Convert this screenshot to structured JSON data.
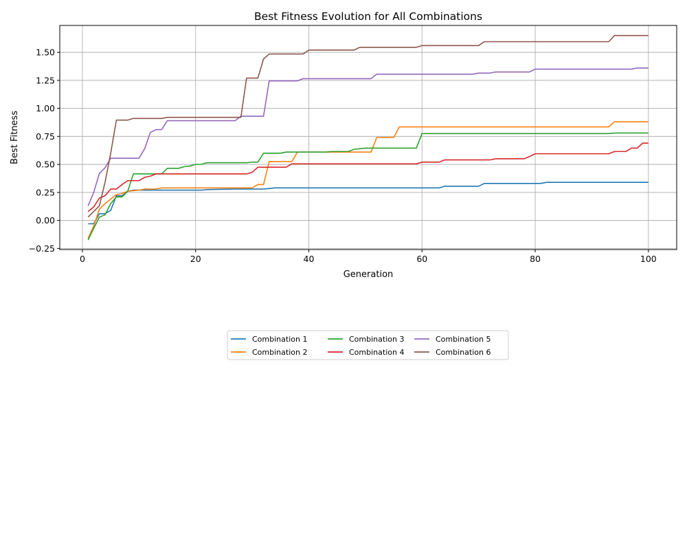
{
  "chart_data": {
    "type": "line",
    "title": "Best Fitness Evolution for All Combinations",
    "xlabel": "Generation",
    "ylabel": "Best Fitness",
    "xlim": [
      -4,
      105
    ],
    "ylim": [
      -0.26,
      1.74
    ],
    "xticks": [
      0,
      20,
      40,
      60,
      80,
      100
    ],
    "yticks": [
      -0.25,
      0.0,
      0.25,
      0.5,
      0.75,
      1.0,
      1.25,
      1.5
    ],
    "ytick_labels": [
      "−0.25",
      "0.00",
      "0.25",
      "0.50",
      "0.75",
      "1.00",
      "1.25",
      "1.50"
    ],
    "xtick_labels": [
      "0",
      "20",
      "40",
      "60",
      "80",
      "100"
    ],
    "grid": true,
    "legend_position": "bottom-center",
    "series": [
      {
        "name": "Combination 1",
        "color": "#1f77b4",
        "points": [
          [
            1,
            -0.03
          ],
          [
            2,
            -0.03
          ],
          [
            3,
            0.06
          ],
          [
            4,
            0.06
          ],
          [
            5,
            0.09
          ],
          [
            6,
            0.22
          ],
          [
            7,
            0.22
          ],
          [
            8,
            0.26
          ],
          [
            9,
            0.27
          ],
          [
            21,
            0.27
          ],
          [
            22,
            0.275
          ],
          [
            27,
            0.28
          ],
          [
            32,
            0.28
          ],
          [
            33,
            0.285
          ],
          [
            34,
            0.29
          ],
          [
            63,
            0.29
          ],
          [
            64,
            0.305
          ],
          [
            70,
            0.305
          ],
          [
            71,
            0.33
          ],
          [
            81,
            0.33
          ],
          [
            82,
            0.34
          ],
          [
            100,
            0.34
          ]
        ]
      },
      {
        "name": "Combination 2",
        "color": "#ff7f0e",
        "points": [
          [
            1,
            -0.16
          ],
          [
            2,
            -0.05
          ],
          [
            3,
            0.1
          ],
          [
            4,
            0.15
          ],
          [
            5,
            0.19
          ],
          [
            6,
            0.23
          ],
          [
            7,
            0.24
          ],
          [
            8,
            0.26
          ],
          [
            10,
            0.27
          ],
          [
            11,
            0.28
          ],
          [
            13,
            0.28
          ],
          [
            14,
            0.29
          ],
          [
            30,
            0.29
          ],
          [
            31,
            0.32
          ],
          [
            32,
            0.32
          ],
          [
            33,
            0.525
          ],
          [
            37,
            0.525
          ],
          [
            38,
            0.61
          ],
          [
            51,
            0.61
          ],
          [
            52,
            0.74
          ],
          [
            55,
            0.74
          ],
          [
            56,
            0.835
          ],
          [
            93,
            0.835
          ],
          [
            94,
            0.88
          ],
          [
            100,
            0.88
          ]
        ]
      },
      {
        "name": "Combination 3",
        "color": "#2ca02c",
        "points": [
          [
            1,
            -0.175
          ],
          [
            2,
            -0.07
          ],
          [
            3,
            0.03
          ],
          [
            4,
            0.05
          ],
          [
            5,
            0.15
          ],
          [
            6,
            0.21
          ],
          [
            7,
            0.21
          ],
          [
            8,
            0.26
          ],
          [
            9,
            0.415
          ],
          [
            14,
            0.415
          ],
          [
            15,
            0.465
          ],
          [
            17,
            0.465
          ],
          [
            18,
            0.48
          ],
          [
            19,
            0.485
          ],
          [
            20,
            0.5
          ],
          [
            21,
            0.5
          ],
          [
            22,
            0.515
          ],
          [
            29,
            0.515
          ],
          [
            30,
            0.52
          ],
          [
            31,
            0.52
          ],
          [
            32,
            0.6
          ],
          [
            35,
            0.6
          ],
          [
            36,
            0.61
          ],
          [
            43,
            0.61
          ],
          [
            44,
            0.615
          ],
          [
            47,
            0.615
          ],
          [
            48,
            0.635
          ],
          [
            49,
            0.64
          ],
          [
            50,
            0.645
          ],
          [
            59,
            0.645
          ],
          [
            60,
            0.775
          ],
          [
            93,
            0.775
          ],
          [
            94,
            0.78
          ],
          [
            100,
            0.78
          ]
        ]
      },
      {
        "name": "Combination 4",
        "color": "#d62728",
        "points": [
          [
            1,
            0.08
          ],
          [
            2,
            0.12
          ],
          [
            3,
            0.2
          ],
          [
            4,
            0.22
          ],
          [
            5,
            0.28
          ],
          [
            6,
            0.28
          ],
          [
            7,
            0.32
          ],
          [
            8,
            0.355
          ],
          [
            10,
            0.355
          ],
          [
            11,
            0.385
          ],
          [
            12,
            0.395
          ],
          [
            13,
            0.415
          ],
          [
            28,
            0.415
          ],
          [
            29,
            0.415
          ],
          [
            30,
            0.43
          ],
          [
            31,
            0.475
          ],
          [
            36,
            0.475
          ],
          [
            37,
            0.505
          ],
          [
            59,
            0.505
          ],
          [
            60,
            0.52
          ],
          [
            63,
            0.52
          ],
          [
            64,
            0.54
          ],
          [
            72,
            0.54
          ],
          [
            73,
            0.55
          ],
          [
            78,
            0.55
          ],
          [
            79,
            0.57
          ],
          [
            80,
            0.595
          ],
          [
            93,
            0.595
          ],
          [
            94,
            0.615
          ],
          [
            96,
            0.615
          ],
          [
            97,
            0.645
          ],
          [
            98,
            0.645
          ],
          [
            99,
            0.69
          ],
          [
            100,
            0.69
          ]
        ]
      },
      {
        "name": "Combination 5",
        "color": "#9467bd",
        "points": [
          [
            1,
            0.13
          ],
          [
            2,
            0.25
          ],
          [
            3,
            0.42
          ],
          [
            4,
            0.47
          ],
          [
            5,
            0.555
          ],
          [
            10,
            0.555
          ],
          [
            11,
            0.64
          ],
          [
            12,
            0.785
          ],
          [
            13,
            0.81
          ],
          [
            14,
            0.81
          ],
          [
            15,
            0.89
          ],
          [
            27,
            0.89
          ],
          [
            28,
            0.93
          ],
          [
            32,
            0.93
          ],
          [
            33,
            1.245
          ],
          [
            38,
            1.245
          ],
          [
            39,
            1.265
          ],
          [
            51,
            1.265
          ],
          [
            52,
            1.305
          ],
          [
            69,
            1.305
          ],
          [
            70,
            1.315
          ],
          [
            72,
            1.315
          ],
          [
            73,
            1.325
          ],
          [
            79,
            1.325
          ],
          [
            80,
            1.35
          ],
          [
            97,
            1.35
          ],
          [
            98,
            1.36
          ],
          [
            100,
            1.36
          ]
        ]
      },
      {
        "name": "Combination 6",
        "color": "#8c564b",
        "points": [
          [
            1,
            0.03
          ],
          [
            2,
            0.08
          ],
          [
            3,
            0.13
          ],
          [
            4,
            0.34
          ],
          [
            5,
            0.6
          ],
          [
            6,
            0.895
          ],
          [
            8,
            0.895
          ],
          [
            9,
            0.91
          ],
          [
            14,
            0.91
          ],
          [
            15,
            0.92
          ],
          [
            27,
            0.92
          ],
          [
            28,
            0.92
          ],
          [
            29,
            1.27
          ],
          [
            31,
            1.27
          ],
          [
            32,
            1.44
          ],
          [
            33,
            1.485
          ],
          [
            39,
            1.485
          ],
          [
            40,
            1.52
          ],
          [
            48,
            1.52
          ],
          [
            49,
            1.545
          ],
          [
            59,
            1.545
          ],
          [
            60,
            1.56
          ],
          [
            70,
            1.56
          ],
          [
            71,
            1.595
          ],
          [
            93,
            1.595
          ],
          [
            94,
            1.65
          ],
          [
            100,
            1.65
          ]
        ]
      }
    ]
  }
}
